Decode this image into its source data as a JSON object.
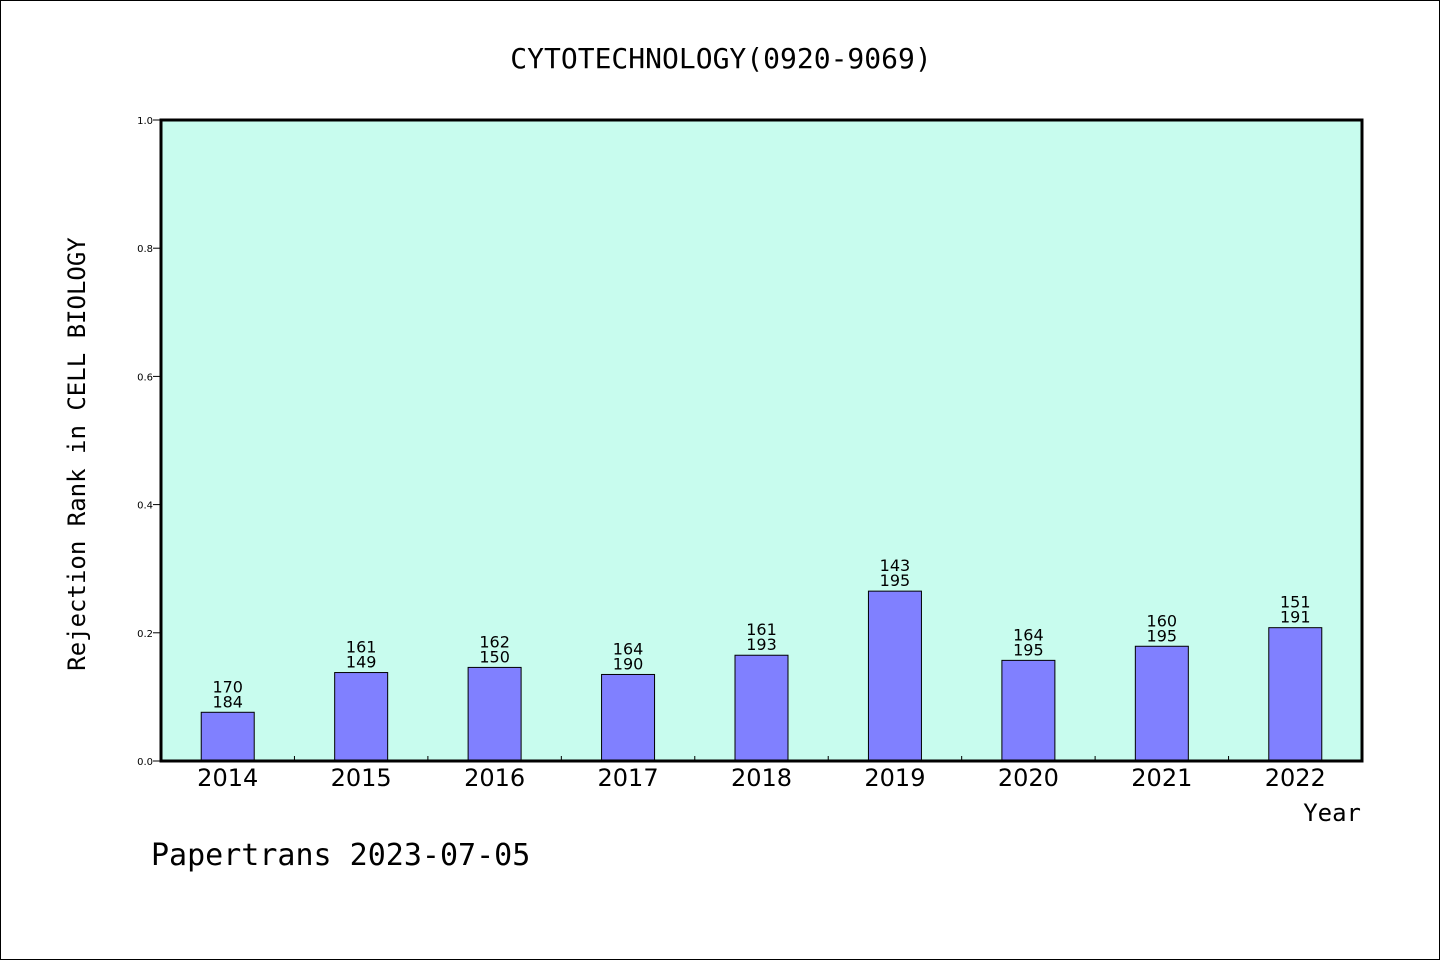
{
  "colors": {
    "plot_background": "#c8fcee",
    "bar_fill": "#8080ff",
    "bar_stroke": "#000000",
    "frame": "#000000"
  },
  "footer": "Papertrans 2023-07-05",
  "chart_data": {
    "type": "bar",
    "title": "CYTOTECHNOLOGY(0920-9069)",
    "xlabel": "Year",
    "ylabel": "Rejection Rank in CELL BIOLOGY",
    "ylim": [
      0,
      1.0
    ],
    "yticks": [
      0.0,
      0.2,
      0.4,
      0.6,
      0.8,
      1.0
    ],
    "ytick_labels": [
      "0.0",
      "0.2",
      "0.4",
      "0.6",
      "0.8",
      "1.0"
    ],
    "grid": false,
    "categories": [
      "2014",
      "2015",
      "2016",
      "2017",
      "2018",
      "2019",
      "2020",
      "2021",
      "2022"
    ],
    "values": [
      0.076,
      0.138,
      0.146,
      0.135,
      0.165,
      0.265,
      0.157,
      0.179,
      0.208
    ],
    "bar_labels_top": [
      "170",
      "161",
      "162",
      "164",
      "161",
      "143",
      "164",
      "160",
      "151"
    ],
    "bar_labels_bottom": [
      "184",
      "149",
      "150",
      "190",
      "193",
      "195",
      "195",
      "195",
      "191"
    ]
  }
}
